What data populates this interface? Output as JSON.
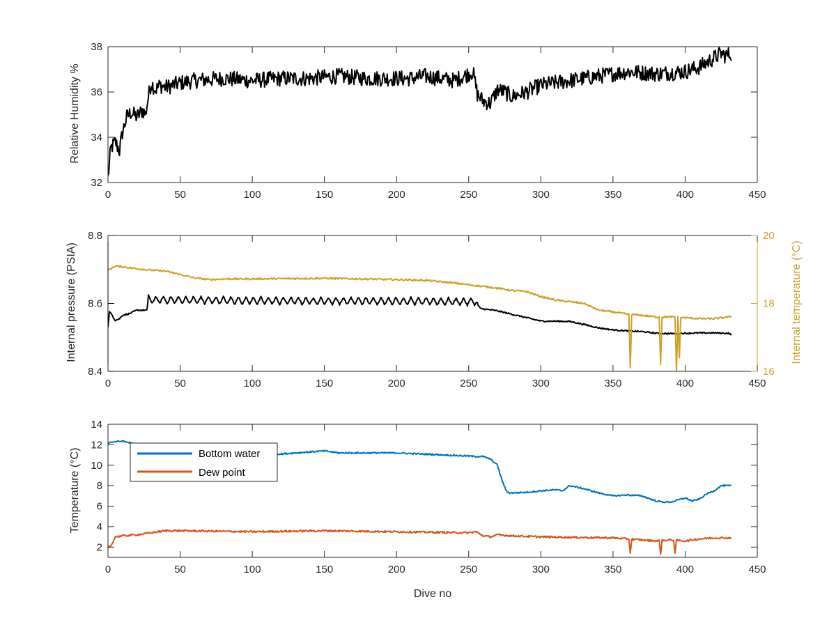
{
  "chart_data": [
    {
      "type": "line",
      "xlabel": "",
      "ylabel": "Relative Humidity %",
      "xlim": [
        0,
        450
      ],
      "ylim": [
        32,
        38
      ],
      "xticks": [
        0,
        50,
        100,
        150,
        200,
        250,
        300,
        350,
        400,
        450
      ],
      "yticks": [
        32,
        34,
        36,
        38
      ],
      "series": [
        {
          "color": "#000000",
          "noise": 0.35,
          "x": [
            0,
            2,
            5,
            8,
            10,
            13,
            16,
            20,
            24,
            26,
            28,
            30,
            33,
            36,
            40,
            45,
            50,
            60,
            80,
            100,
            120,
            140,
            160,
            180,
            200,
            210,
            220,
            230,
            240,
            250,
            253,
            256,
            260,
            265,
            270,
            275,
            280,
            285,
            290,
            300,
            320,
            340,
            360,
            380,
            400,
            410,
            420,
            425,
            428,
            432
          ],
          "y": [
            32.2,
            33.5,
            33.8,
            33.4,
            34.2,
            34.9,
            35.1,
            34.9,
            35.2,
            35.0,
            35.8,
            36.4,
            36.1,
            36.3,
            36.2,
            36.3,
            36.4,
            36.5,
            36.6,
            36.5,
            36.6,
            36.6,
            36.7,
            36.6,
            36.6,
            36.6,
            36.7,
            36.6,
            36.5,
            36.8,
            36.9,
            35.9,
            35.6,
            35.5,
            36.1,
            36.0,
            35.8,
            35.9,
            36.0,
            36.3,
            36.5,
            36.7,
            36.9,
            36.8,
            36.9,
            37.1,
            37.5,
            37.7,
            37.6,
            37.7
          ]
        }
      ]
    },
    {
      "type": "line",
      "xlabel": "",
      "ylabel": "Internal pressure (PSIA)",
      "y2label": "Internal temperature (°C)",
      "xlim": [
        0,
        450
      ],
      "ylim": [
        8.4,
        8.8
      ],
      "y2lim": [
        16,
        20
      ],
      "xticks": [
        0,
        50,
        100,
        150,
        200,
        250,
        300,
        350,
        400,
        450
      ],
      "yticks": [
        8.4,
        8.6,
        8.8
      ],
      "y2ticks": [
        16,
        18,
        20
      ],
      "y2color": "#C9A227",
      "series": [
        {
          "color": "#000000",
          "axis": "left",
          "noise": 0.002,
          "oscillation": {
            "from": 28,
            "to": 256,
            "period": 5.2,
            "amplitude": 0.011
          },
          "x": [
            0,
            1,
            3,
            5,
            8,
            10,
            15,
            20,
            25,
            27,
            28,
            30,
            50,
            100,
            150,
            200,
            250,
            255,
            258,
            270,
            280,
            290,
            300,
            320,
            330,
            340,
            350,
            360,
            370,
            380,
            390,
            400,
            410,
            420,
            430,
            432
          ],
          "y": [
            8.53,
            8.575,
            8.565,
            8.55,
            8.555,
            8.565,
            8.57,
            8.58,
            8.58,
            8.58,
            8.615,
            8.61,
            8.61,
            8.608,
            8.607,
            8.607,
            8.605,
            8.605,
            8.585,
            8.578,
            8.568,
            8.558,
            8.548,
            8.547,
            8.538,
            8.528,
            8.522,
            8.519,
            8.517,
            8.512,
            8.511,
            8.512,
            8.513,
            8.513,
            8.512,
            8.508
          ]
        },
        {
          "color": "#C9A227",
          "axis": "right",
          "noise": 0.025,
          "x": [
            0,
            5,
            10,
            20,
            30,
            40,
            50,
            60,
            70,
            80,
            100,
            150,
            200,
            220,
            240,
            250,
            260,
            270,
            280,
            290,
            300,
            310,
            320,
            330,
            340,
            350,
            360,
            370,
            380,
            390,
            400,
            410,
            420,
            430,
            432
          ],
          "y": [
            18.97,
            19.1,
            19.08,
            19.02,
            18.98,
            18.95,
            18.85,
            18.75,
            18.7,
            18.72,
            18.72,
            18.74,
            18.7,
            18.68,
            18.6,
            18.55,
            18.5,
            18.45,
            18.38,
            18.35,
            18.2,
            18.1,
            18.05,
            18.0,
            17.8,
            17.75,
            17.68,
            17.65,
            17.6,
            17.6,
            17.58,
            17.55,
            17.55,
            17.6,
            17.62
          ],
          "spikes": [
            [
              362,
              16.1
            ],
            [
              383,
              16.2
            ],
            [
              394,
              16.0
            ],
            [
              396,
              16.4
            ]
          ]
        }
      ]
    },
    {
      "type": "line",
      "xlabel": "Dive no",
      "ylabel": "Temperature (°C)",
      "xlim": [
        0,
        450
      ],
      "ylim": [
        1,
        14
      ],
      "xticks": [
        0,
        50,
        100,
        150,
        200,
        250,
        300,
        350,
        400,
        450
      ],
      "yticks": [
        2,
        4,
        6,
        8,
        10,
        12,
        14
      ],
      "legend": "upper-left",
      "series": [
        {
          "name": "Bottom water",
          "color": "#0072BD",
          "noise": 0.07,
          "x": [
            0,
            5,
            10,
            15,
            20,
            30,
            50,
            80,
            100,
            120,
            140,
            150,
            160,
            200,
            250,
            255,
            260,
            265,
            270,
            272,
            274,
            276,
            278,
            280,
            290,
            300,
            310,
            315,
            320,
            330,
            340,
            350,
            360,
            370,
            380,
            385,
            390,
            400,
            405,
            410,
            415,
            420,
            425,
            432
          ],
          "y": [
            12.2,
            12.3,
            12.35,
            12.2,
            12.0,
            11.6,
            11.4,
            11.1,
            11.1,
            11.1,
            11.3,
            11.4,
            11.2,
            11.2,
            10.9,
            10.85,
            10.85,
            10.6,
            10.0,
            9.0,
            8.2,
            7.5,
            7.3,
            7.3,
            7.35,
            7.5,
            7.6,
            7.5,
            8.0,
            7.7,
            7.3,
            7.0,
            7.1,
            7.0,
            6.5,
            6.4,
            6.4,
            6.8,
            6.5,
            6.7,
            7.2,
            7.5,
            8.0,
            8.0
          ]
        },
        {
          "name": "Dew point",
          "color": "#D95319",
          "noise": 0.09,
          "x": [
            0,
            2,
            5,
            10,
            20,
            30,
            40,
            50,
            100,
            150,
            200,
            250,
            255,
            260,
            265,
            270,
            280,
            300,
            350,
            360,
            370,
            380,
            390,
            400,
            410,
            420,
            432
          ],
          "y": [
            2.0,
            2.1,
            3.0,
            3.1,
            3.2,
            3.4,
            3.6,
            3.6,
            3.5,
            3.6,
            3.5,
            3.4,
            3.5,
            3.1,
            3.0,
            3.2,
            3.1,
            3.0,
            2.9,
            2.8,
            2.7,
            2.6,
            2.7,
            2.6,
            2.8,
            2.9,
            2.9
          ],
          "spikes": [
            [
              362,
              1.4
            ],
            [
              383,
              1.3
            ],
            [
              393,
              1.4
            ]
          ]
        }
      ]
    }
  ]
}
